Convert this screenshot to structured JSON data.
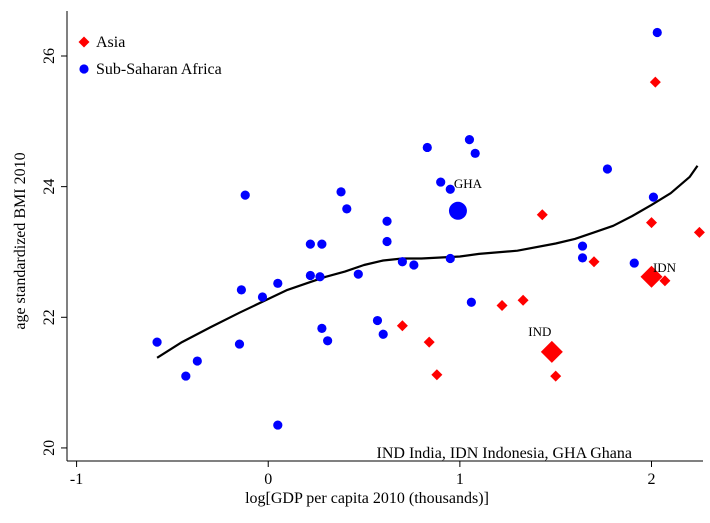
{
  "chart_data": {
    "type": "scatter",
    "title": "",
    "xlabel": "log[GDP per capita 2010 (thousands)]",
    "ylabel": "age standardized BMI 2010",
    "xlim": [
      -1.05,
      2.3
    ],
    "ylim": [
      19.8,
      26.75
    ],
    "x_ticks": [
      -1,
      0,
      1,
      2
    ],
    "x_tick_labels": [
      "-1",
      "0",
      "1",
      "2"
    ],
    "y_ticks": [
      20,
      22,
      24,
      26
    ],
    "y_tick_labels": [
      "20",
      "22",
      "24",
      "26"
    ],
    "grid": false,
    "legend_position": "top-left",
    "footnote": "IND India,  IDN Indonesia,  GHA Ghana",
    "series": [
      {
        "name": "Asia",
        "marker": "diamond",
        "color": "#ff0000",
        "points": [
          {
            "x": 0.7,
            "y": 21.87
          },
          {
            "x": 0.84,
            "y": 21.62
          },
          {
            "x": 0.88,
            "y": 21.12
          },
          {
            "x": 1.22,
            "y": 22.18
          },
          {
            "x": 1.33,
            "y": 22.26
          },
          {
            "x": 1.43,
            "y": 23.57
          },
          {
            "x": 1.48,
            "y": 21.47,
            "label": "IND",
            "big": true
          },
          {
            "x": 1.5,
            "y": 21.1
          },
          {
            "x": 1.7,
            "y": 22.85
          },
          {
            "x": 2.0,
            "y": 22.62,
            "label": "IDN",
            "big": true
          },
          {
            "x": 2.0,
            "y": 23.45
          },
          {
            "x": 2.02,
            "y": 25.6
          },
          {
            "x": 2.07,
            "y": 22.56
          },
          {
            "x": 2.25,
            "y": 23.3
          }
        ]
      },
      {
        "name": "Sub-Saharan Africa",
        "marker": "circle",
        "color": "#0000ff",
        "points": [
          {
            "x": -0.58,
            "y": 21.62
          },
          {
            "x": -0.43,
            "y": 21.1
          },
          {
            "x": -0.37,
            "y": 21.33
          },
          {
            "x": -0.15,
            "y": 21.59
          },
          {
            "x": -0.14,
            "y": 22.42
          },
          {
            "x": -0.12,
            "y": 23.87
          },
          {
            "x": -0.03,
            "y": 22.31
          },
          {
            "x": 0.05,
            "y": 22.52
          },
          {
            "x": 0.05,
            "y": 20.35
          },
          {
            "x": 0.22,
            "y": 23.12
          },
          {
            "x": 0.22,
            "y": 22.64
          },
          {
            "x": 0.27,
            "y": 22.62
          },
          {
            "x": 0.28,
            "y": 21.83
          },
          {
            "x": 0.28,
            "y": 23.12
          },
          {
            "x": 0.31,
            "y": 21.64
          },
          {
            "x": 0.38,
            "y": 23.92
          },
          {
            "x": 0.41,
            "y": 23.66
          },
          {
            "x": 0.47,
            "y": 22.66
          },
          {
            "x": 0.57,
            "y": 21.95
          },
          {
            "x": 0.6,
            "y": 21.74
          },
          {
            "x": 0.62,
            "y": 23.47
          },
          {
            "x": 0.62,
            "y": 23.16
          },
          {
            "x": 0.7,
            "y": 22.85
          },
          {
            "x": 0.76,
            "y": 22.8
          },
          {
            "x": 0.83,
            "y": 24.6
          },
          {
            "x": 0.9,
            "y": 24.07
          },
          {
            "x": 0.95,
            "y": 23.96
          },
          {
            "x": 0.95,
            "y": 22.9
          },
          {
            "x": 0.99,
            "y": 23.63,
            "label": "GHA",
            "big": true
          },
          {
            "x": 1.05,
            "y": 24.72
          },
          {
            "x": 1.06,
            "y": 22.23
          },
          {
            "x": 1.08,
            "y": 24.51
          },
          {
            "x": 1.64,
            "y": 23.09
          },
          {
            "x": 1.64,
            "y": 22.91
          },
          {
            "x": 1.77,
            "y": 24.27
          },
          {
            "x": 1.91,
            "y": 22.83
          },
          {
            "x": 2.01,
            "y": 23.84
          },
          {
            "x": 2.03,
            "y": 26.36
          }
        ]
      }
    ],
    "fit_line": {
      "x": [
        -0.58,
        -0.45,
        -0.3,
        -0.15,
        0.0,
        0.1,
        0.2,
        0.3,
        0.4,
        0.5,
        0.6,
        0.7,
        0.8,
        1.0,
        1.1,
        1.3,
        1.5,
        1.6,
        1.7,
        1.8,
        1.9,
        2.0,
        2.1,
        2.2,
        2.24
      ],
      "y": [
        21.38,
        21.62,
        21.85,
        22.07,
        22.28,
        22.42,
        22.52,
        22.62,
        22.7,
        22.8,
        22.87,
        22.9,
        22.9,
        22.93,
        22.97,
        23.02,
        23.13,
        23.2,
        23.3,
        23.4,
        23.55,
        23.72,
        23.9,
        24.15,
        24.32
      ]
    }
  }
}
